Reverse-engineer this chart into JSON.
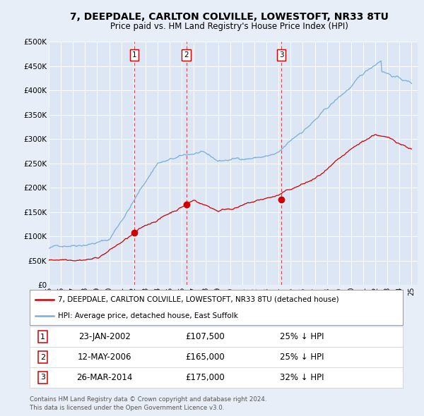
{
  "title": "7, DEEPDALE, CARLTON COLVILLE, LOWESTOFT, NR33 8TU",
  "subtitle": "Price paid vs. HM Land Registry's House Price Index (HPI)",
  "bg_color": "#e8eef8",
  "plot_bg_color": "#dce6f5",
  "grid_color": "#ffffff",
  "hpi_color": "#7aaed6",
  "price_color": "#cc0000",
  "sale_marker_color": "#cc0000",
  "vline_color": "#cc3333",
  "transactions": [
    {
      "label": "1",
      "date_num": 2002.07,
      "price": 107500,
      "date_str": "23-JAN-2002",
      "pct": "25%"
    },
    {
      "label": "2",
      "date_num": 2006.37,
      "price": 165000,
      "date_str": "12-MAY-2006",
      "pct": "25%"
    },
    {
      "label": "3",
      "date_num": 2014.23,
      "price": 175000,
      "date_str": "26-MAR-2014",
      "pct": "32%"
    }
  ],
  "legend_line1": "7, DEEPDALE, CARLTON COLVILLE, LOWESTOFT, NR33 8TU (detached house)",
  "legend_line2": "HPI: Average price, detached house, East Suffolk",
  "footer1": "Contains HM Land Registry data © Crown copyright and database right 2024.",
  "footer2": "This data is licensed under the Open Government Licence v3.0.",
  "xmin": 1995.0,
  "xmax": 2025.5,
  "ymin": 0,
  "ymax": 500000,
  "yticks": [
    0,
    50000,
    100000,
    150000,
    200000,
    250000,
    300000,
    350000,
    400000,
    450000,
    500000
  ],
  "ytick_labels": [
    "£0",
    "£50K",
    "£100K",
    "£150K",
    "£200K",
    "£250K",
    "£300K",
    "£350K",
    "£400K",
    "£450K",
    "£500K"
  ]
}
